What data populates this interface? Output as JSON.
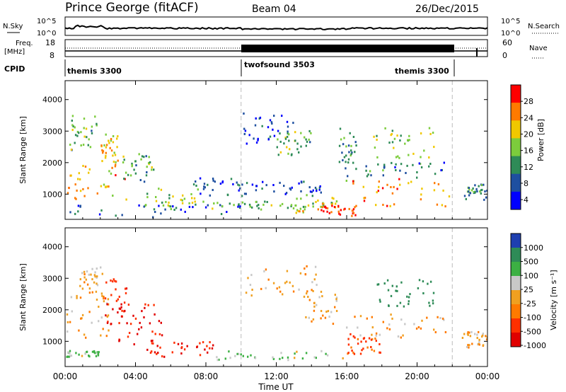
{
  "header": {
    "station": "Prince George (fitACF)",
    "beam": "Beam 04",
    "date": "26/Dec/2015"
  },
  "top_panels": {
    "nsky_label": "N.Sky",
    "nsky_ticks": [
      "10^5",
      "10^0"
    ],
    "nsearch_label": "N.Search",
    "nsearch_ticks": [
      "10^5",
      "10^0"
    ],
    "freq_label_1": "Freq.",
    "freq_label_2": "[MHz]",
    "freq_ticks": [
      "18",
      "8"
    ],
    "nave_label": "Nave",
    "nave_ticks": [
      "60",
      "0"
    ],
    "cpid_label": "CPID",
    "cpid_segments": [
      {
        "name": "themis 3300",
        "start_h": 0,
        "end_h": 10.0
      },
      {
        "name": "twofsound 3503",
        "start_h": 10.0,
        "end_h": 22.0
      },
      {
        "name": "themis 3300",
        "start_h": 22.0,
        "end_h": 24.0
      }
    ],
    "cpid_names": [
      "themis 3300",
      "twofsound 3503",
      "themis 3300"
    ]
  },
  "chart_data": [
    {
      "type": "heatmap",
      "title": "Power",
      "ylabel": "Slant Range [km]",
      "xlabel": "Time UT",
      "xlim": [
        0,
        24
      ],
      "ylim": [
        200,
        4600
      ],
      "yticks": [
        "1000",
        "2000",
        "3000",
        "4000"
      ],
      "colorbar_label": "Power [dB]",
      "colorbar_ticks": [
        "28",
        "24",
        "20",
        "16",
        "12",
        "8",
        "4"
      ],
      "colorbar_colors": [
        "#ff0000",
        "#ff7a00",
        "#f0c800",
        "#7ccc3c",
        "#2e8b57",
        "#1e4fa0",
        "#0000ff"
      ],
      "regions": [
        {
          "t0": 0.0,
          "t1": 3.5,
          "r0": 800,
          "r1": 1900,
          "v": 22
        },
        {
          "t0": 0.2,
          "t1": 2.2,
          "r0": 2400,
          "r1": 3500,
          "v": 14
        },
        {
          "t0": 2.0,
          "t1": 3.0,
          "r0": 1800,
          "r1": 2900,
          "v": 20
        },
        {
          "t0": 3.2,
          "t1": 5.0,
          "r0": 1300,
          "r1": 2300,
          "v": 14
        },
        {
          "t0": 4.5,
          "t1": 8.0,
          "r0": 500,
          "r1": 1200,
          "v": 16
        },
        {
          "t0": 0.0,
          "t1": 10.0,
          "r0": 250,
          "r1": 650,
          "v": 8
        },
        {
          "t0": 7.2,
          "t1": 10.5,
          "r0": 900,
          "r1": 1500,
          "v": 8
        },
        {
          "t0": 8.2,
          "t1": 13.5,
          "r0": 500,
          "r1": 800,
          "v": 14
        },
        {
          "t0": 10.0,
          "t1": 13.0,
          "r0": 2600,
          "r1": 3600,
          "v": 6
        },
        {
          "t0": 12.0,
          "t1": 14.0,
          "r0": 2200,
          "r1": 3000,
          "v": 14
        },
        {
          "t0": 10.5,
          "t1": 14.5,
          "r0": 1000,
          "r1": 1400,
          "v": 8
        },
        {
          "t0": 13.0,
          "t1": 15.5,
          "r0": 400,
          "r1": 1000,
          "v": 18
        },
        {
          "t0": 14.5,
          "t1": 16.5,
          "r0": 300,
          "r1": 700,
          "v": 27
        },
        {
          "t0": 15.5,
          "t1": 16.5,
          "r0": 1400,
          "r1": 3100,
          "v": 12
        },
        {
          "t0": 16.3,
          "t1": 21.8,
          "r0": 600,
          "r1": 1500,
          "v": 23
        },
        {
          "t0": 17.0,
          "t1": 21.5,
          "r0": 1500,
          "r1": 2000,
          "v": 10
        },
        {
          "t0": 17.5,
          "t1": 21.0,
          "r0": 2100,
          "r1": 3100,
          "v": 17
        },
        {
          "t0": 22.5,
          "t1": 24.0,
          "r0": 800,
          "r1": 1300,
          "v": 12
        }
      ]
    },
    {
      "type": "heatmap",
      "title": "Velocity",
      "ylabel": "Slant Range [km]",
      "xlabel": "Time UT",
      "xlim": [
        0,
        24
      ],
      "ylim": [
        200,
        4600
      ],
      "yticks": [
        "1000",
        "2000",
        "3000",
        "4000"
      ],
      "xticks": [
        "00:00",
        "04:00",
        "08:00",
        "12:00",
        "16:00",
        "20:00",
        "00:00"
      ],
      "colorbar_label": "Velocity [m s⁻¹]",
      "colorbar_ticks": [
        "1000",
        "500",
        "100",
        "25",
        "-25",
        "-100",
        "-500",
        "-1000"
      ],
      "colorbar_colors": [
        "#1e3fb0",
        "#2e8b57",
        "#3cb043",
        "#c8c8c8",
        "#f0a020",
        "#ff7a00",
        "#ff3000",
        "#e00000"
      ],
      "regions": [
        {
          "t0": 0.0,
          "t1": 2.5,
          "r0": 1100,
          "r1": 2500,
          "v": 0
        },
        {
          "t0": 0.8,
          "t1": 2.2,
          "r0": 2500,
          "r1": 3400,
          "v": 0
        },
        {
          "t0": 2.2,
          "t1": 3.5,
          "r0": 1500,
          "r1": 3000,
          "v": -300
        },
        {
          "t0": 3.0,
          "t1": 5.5,
          "r0": 900,
          "r1": 2200,
          "v": -300
        },
        {
          "t0": 4.5,
          "t1": 8.5,
          "r0": 500,
          "r1": 1000,
          "v": -300
        },
        {
          "t0": 0.0,
          "t1": 2.0,
          "r0": 500,
          "r1": 700,
          "v": 80
        },
        {
          "t0": 8.5,
          "t1": 16.5,
          "r0": 400,
          "r1": 700,
          "v": 80
        },
        {
          "t0": 10.0,
          "t1": 14.5,
          "r0": 2400,
          "r1": 3400,
          "v": 0
        },
        {
          "t0": 13.5,
          "t1": 15.5,
          "r0": 1500,
          "r1": 2600,
          "v": 0
        },
        {
          "t0": 15.8,
          "t1": 21.8,
          "r0": 1000,
          "r1": 1900,
          "v": 0
        },
        {
          "t0": 16.0,
          "t1": 18.0,
          "r0": 600,
          "r1": 1300,
          "v": -80
        },
        {
          "t0": 17.5,
          "t1": 21.0,
          "r0": 2100,
          "r1": 3000,
          "v": 400
        },
        {
          "t0": 22.5,
          "t1": 24.0,
          "r0": 800,
          "r1": 1300,
          "v": 0
        }
      ]
    }
  ]
}
